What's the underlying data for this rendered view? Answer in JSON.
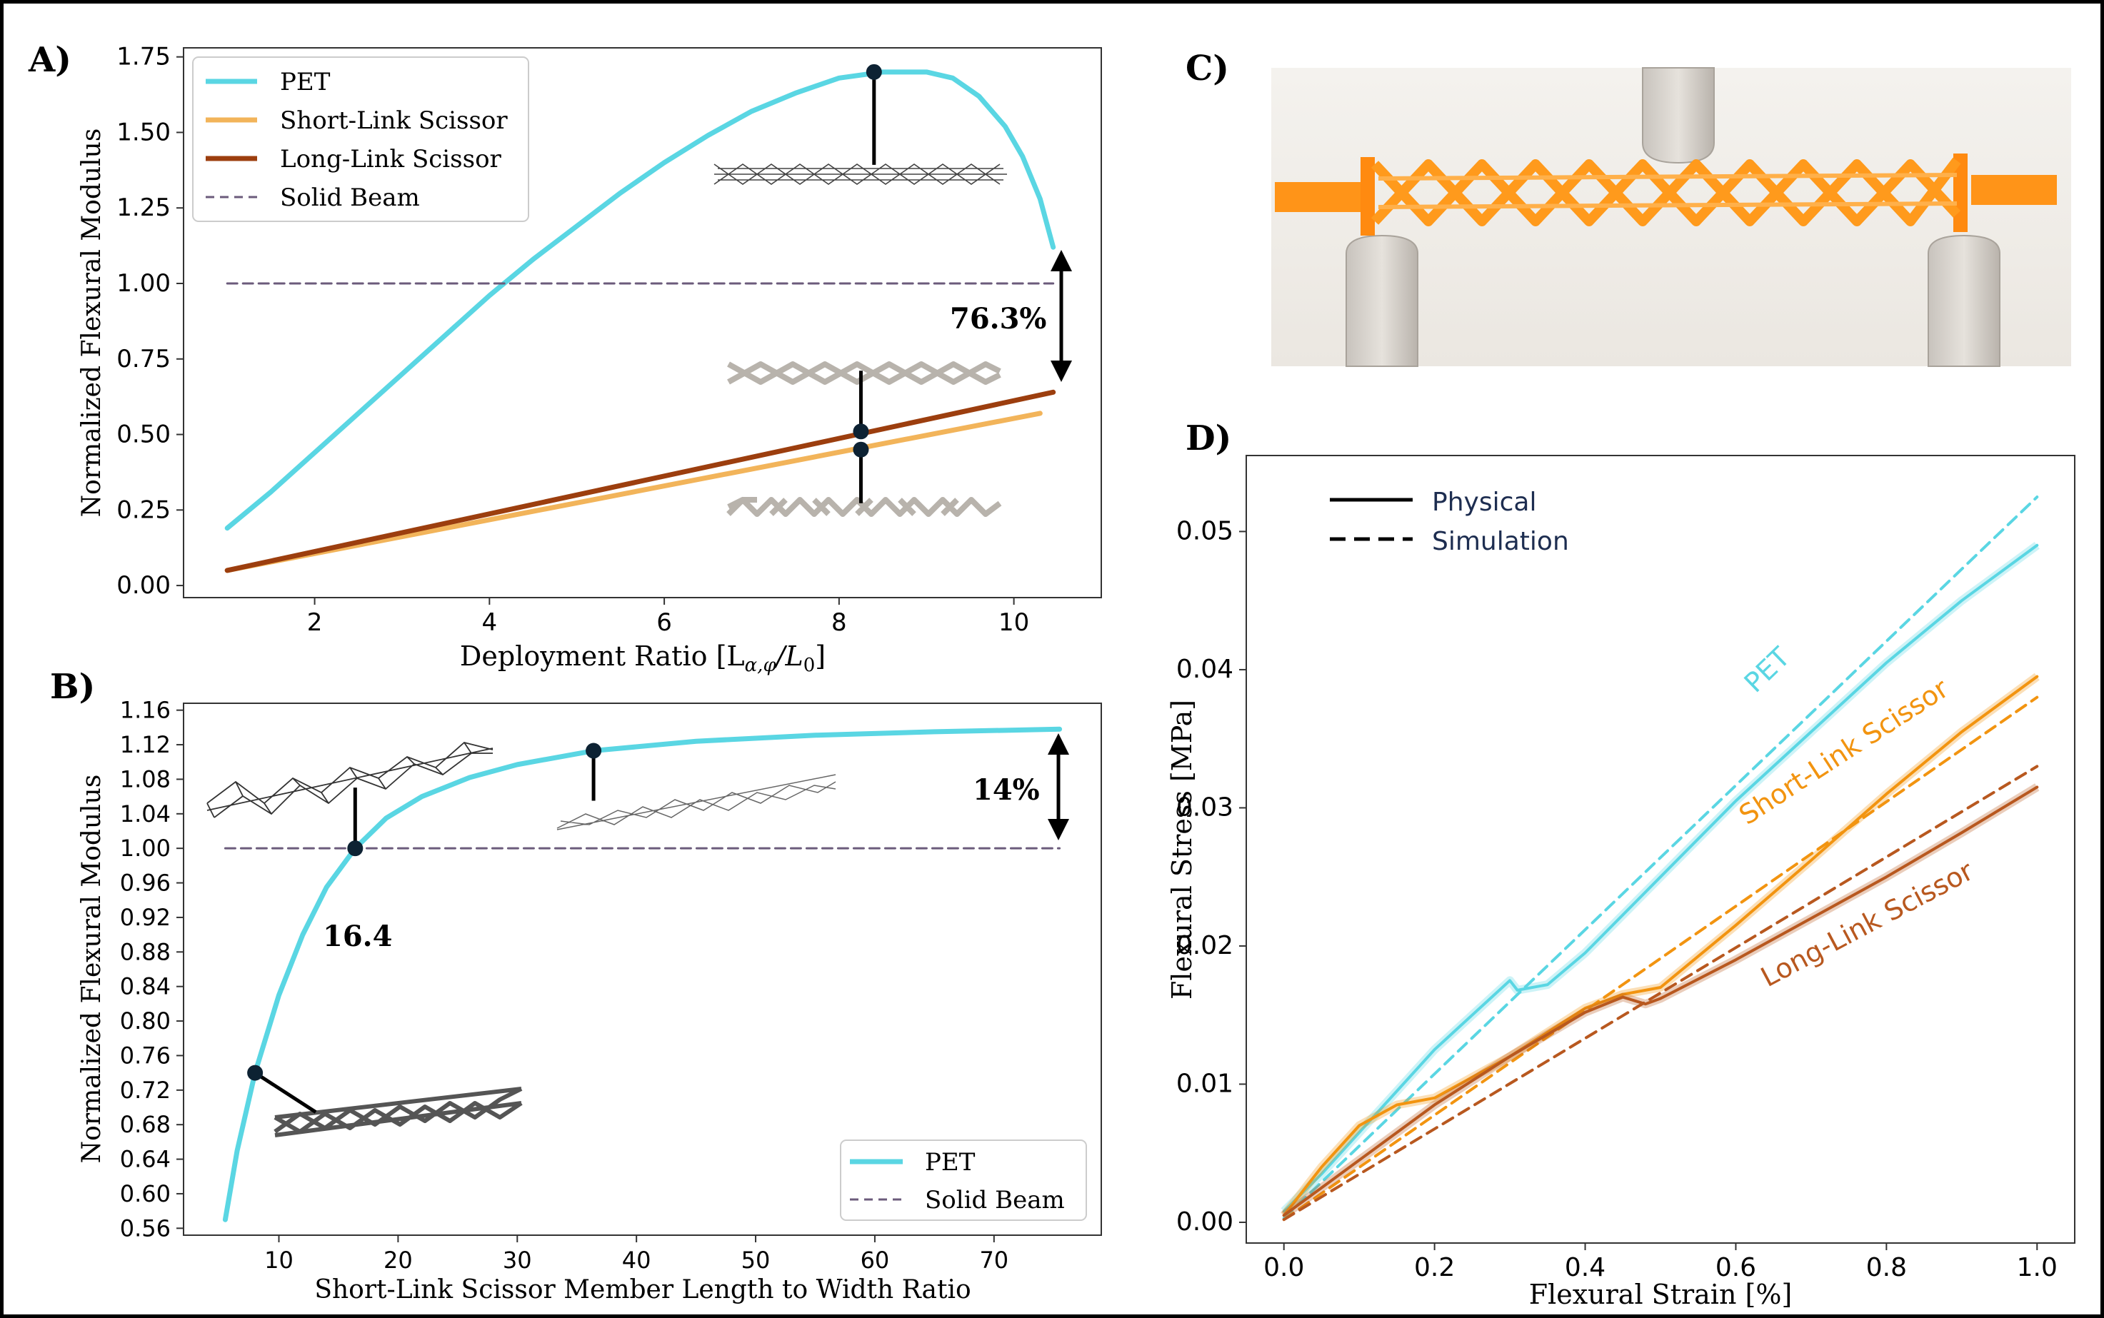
{
  "colors": {
    "pet": "#5ad6e3",
    "short_link": "#f2b45a",
    "long_link": "#9c3e0e",
    "solid_beam": "#6b5b7b",
    "orange_d": "#f29410",
    "brown_d": "#b8581f",
    "ink": "#000000"
  },
  "panel_labels": {
    "a": "A)",
    "b": "B)",
    "c": "C)",
    "d": "D)"
  },
  "annotations": {
    "a_gap": "76.3%",
    "b_gap": "14%",
    "b_point": "16.4"
  },
  "chart_data": [
    {
      "id": "A",
      "type": "line",
      "xlabel": "Deployment Ratio [L",
      "xlabel_sub": "α,φ",
      "xlabel_mid": "/L",
      "xlabel_sub2": "0",
      "xlabel_end": "]",
      "ylabel": "Normalized Flexural Modulus",
      "xlim": [
        0.5,
        11.0
      ],
      "ylim": [
        -0.04,
        1.78
      ],
      "xticks": [
        2,
        4,
        6,
        8,
        10
      ],
      "yticks": [
        0.0,
        0.25,
        0.5,
        0.75,
        1.0,
        1.25,
        1.5,
        1.75
      ],
      "legend": "upper-left",
      "series": [
        {
          "name": "PET",
          "color_key": "pet",
          "style": "solid",
          "x": [
            1.0,
            1.5,
            2.0,
            2.5,
            3.0,
            3.5,
            4.0,
            4.5,
            5.0,
            5.5,
            6.0,
            6.5,
            7.0,
            7.5,
            8.0,
            8.5,
            9.0,
            9.3,
            9.6,
            9.9,
            10.1,
            10.3,
            10.45
          ],
          "y": [
            0.19,
            0.31,
            0.44,
            0.57,
            0.7,
            0.83,
            0.96,
            1.08,
            1.19,
            1.3,
            1.4,
            1.49,
            1.57,
            1.63,
            1.68,
            1.7,
            1.7,
            1.68,
            1.62,
            1.52,
            1.42,
            1.28,
            1.12
          ]
        },
        {
          "name": "Short-Link Scissor",
          "color_key": "short_link",
          "style": "solid",
          "x": [
            1.0,
            10.3
          ],
          "y": [
            0.05,
            0.57
          ]
        },
        {
          "name": "Long-Link Scissor",
          "color_key": "long_link",
          "style": "solid",
          "x": [
            1.0,
            10.45
          ],
          "y": [
            0.05,
            0.64
          ]
        },
        {
          "name": "Solid Beam",
          "color_key": "solid_beam",
          "style": "dashed",
          "x": [
            1.0,
            10.45
          ],
          "y": [
            1.0,
            1.0
          ]
        }
      ],
      "markers": [
        {
          "x": 8.4,
          "y": 1.7
        },
        {
          "x": 8.25,
          "y": 0.51
        },
        {
          "x": 8.25,
          "y": 0.45
        }
      ]
    },
    {
      "id": "B",
      "type": "line",
      "xlabel": "Short-Link Scissor Member Length to Width Ratio",
      "ylabel": "Normalized Flexural Modulus",
      "xlim": [
        2.0,
        79.0
      ],
      "ylim": [
        0.552,
        1.168
      ],
      "xticks": [
        10,
        20,
        30,
        40,
        50,
        60,
        70
      ],
      "yticks": [
        0.56,
        0.6,
        0.64,
        0.68,
        0.72,
        0.76,
        0.8,
        0.84,
        0.88,
        0.92,
        0.96,
        1.0,
        1.04,
        1.08,
        1.12,
        1.16
      ],
      "legend": "lower-right",
      "series": [
        {
          "name": "PET",
          "color_key": "pet",
          "style": "solid",
          "x": [
            5.5,
            6.5,
            8.0,
            10.0,
            12.0,
            14.0,
            16.4,
            19.0,
            22.0,
            26.0,
            30.0,
            36.4,
            45.0,
            55.0,
            65.0,
            75.5
          ],
          "y": [
            0.57,
            0.65,
            0.74,
            0.83,
            0.9,
            0.955,
            1.0,
            1.035,
            1.06,
            1.082,
            1.097,
            1.113,
            1.124,
            1.131,
            1.135,
            1.138
          ]
        },
        {
          "name": "Solid Beam",
          "color_key": "solid_beam",
          "style": "dashed",
          "x": [
            5.5,
            75.5
          ],
          "y": [
            1.0,
            1.0
          ]
        }
      ],
      "markers": [
        {
          "x": 8.0,
          "y": 0.74
        },
        {
          "x": 16.4,
          "y": 1.0
        },
        {
          "x": 36.4,
          "y": 1.113
        }
      ]
    },
    {
      "id": "D",
      "type": "line",
      "xlabel": "Flexural Strain [%]",
      "ylabel": "Flexural Stress [MPa]",
      "xlim": [
        -0.05,
        1.05
      ],
      "ylim": [
        -0.0015,
        0.0555
      ],
      "xticks": [
        0.0,
        0.2,
        0.4,
        0.6,
        0.8,
        1.0
      ],
      "xtick_labels": [
        "0.0",
        "0.2",
        "0.4",
        "0.6",
        "0.8",
        "1.0"
      ],
      "yticks": [
        0.0,
        0.01,
        0.02,
        0.03,
        0.04,
        0.05
      ],
      "ytick_labels": [
        "0.00",
        "0.01",
        "0.02",
        "0.03",
        "0.04",
        "0.05"
      ],
      "legend": "upper-left",
      "legend_entries": [
        {
          "name": "Physical",
          "style": "solid"
        },
        {
          "name": "Simulation",
          "style": "dashed"
        }
      ],
      "series": [
        {
          "name": "PET",
          "color_key": "pet",
          "style": "solid",
          "x": [
            0.0,
            0.05,
            0.1,
            0.15,
            0.2,
            0.25,
            0.3,
            0.31,
            0.35,
            0.4,
            0.5,
            0.6,
            0.7,
            0.8,
            0.9,
            1.0
          ],
          "y": [
            0.0008,
            0.0035,
            0.0065,
            0.0095,
            0.0125,
            0.015,
            0.0175,
            0.0168,
            0.0172,
            0.0195,
            0.025,
            0.0305,
            0.0355,
            0.0405,
            0.045,
            0.049
          ]
        },
        {
          "name": "PET",
          "color_key": "pet",
          "style": "dashed",
          "x": [
            0.0,
            1.0
          ],
          "y": [
            0.0003,
            0.0525
          ]
        },
        {
          "name": "Short-Link Scissor",
          "color_key": "orange_d",
          "style": "solid",
          "x": [
            0.0,
            0.05,
            0.1,
            0.15,
            0.2,
            0.3,
            0.4,
            0.45,
            0.5,
            0.6,
            0.7,
            0.8,
            0.9,
            1.0
          ],
          "y": [
            0.0005,
            0.004,
            0.007,
            0.0085,
            0.009,
            0.012,
            0.0155,
            0.0165,
            0.017,
            0.0215,
            0.0262,
            0.031,
            0.0355,
            0.0395
          ]
        },
        {
          "name": "Short-Link Scissor",
          "color_key": "orange_d",
          "style": "dashed",
          "x": [
            0.0,
            1.0
          ],
          "y": [
            0.0002,
            0.038
          ]
        },
        {
          "name": "Long-Link Scissor",
          "color_key": "brown_d",
          "style": "solid",
          "x": [
            0.0,
            0.1,
            0.2,
            0.3,
            0.4,
            0.45,
            0.48,
            0.5,
            0.6,
            0.7,
            0.8,
            0.9,
            1.0
          ],
          "y": [
            0.0005,
            0.0045,
            0.0085,
            0.012,
            0.0152,
            0.0163,
            0.0158,
            0.0162,
            0.019,
            0.022,
            0.025,
            0.0282,
            0.0315
          ]
        },
        {
          "name": "Long-Link Scissor",
          "color_key": "brown_d",
          "style": "dashed",
          "x": [
            0.0,
            1.0
          ],
          "y": [
            0.0002,
            0.033
          ]
        }
      ],
      "curve_labels": [
        {
          "text": "PET",
          "color_key": "pet",
          "x": 0.65,
          "y": 0.0395,
          "angle": -44
        },
        {
          "text": "Short-Link Scissor",
          "color_key": "orange_d",
          "x": 0.75,
          "y": 0.0335,
          "angle": -33
        },
        {
          "text": "Long-Link Scissor",
          "color_key": "brown_d",
          "x": 0.78,
          "y": 0.021,
          "angle": -28
        }
      ]
    }
  ],
  "photo": {
    "alt": ""
  }
}
